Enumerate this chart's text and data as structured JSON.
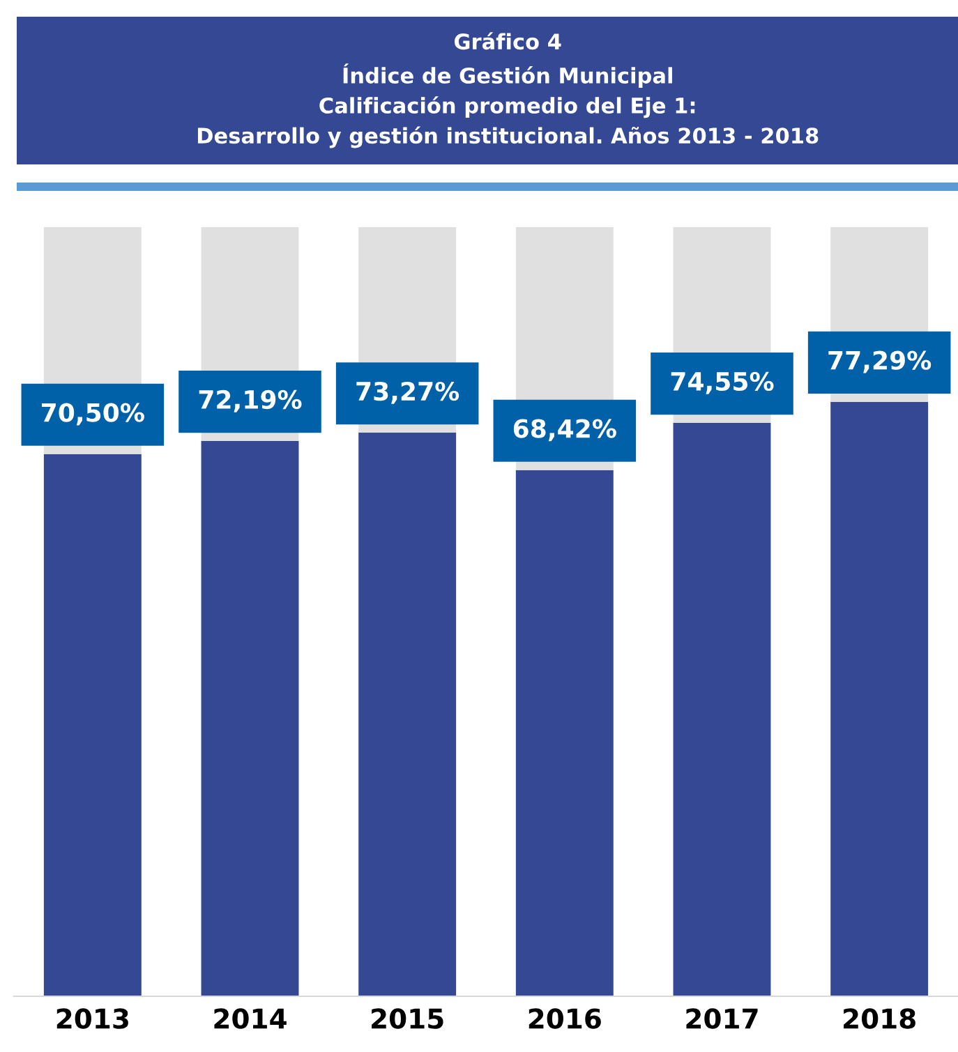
{
  "chart_data": {
    "type": "bar",
    "title": "Gráfico 4\nÍndice de Gestión Municipal\nCalificación promedio del Eje 1:\nDesarrollo y gestión institucional. Años 2013 - 2018",
    "categories": [
      "2013",
      "2014",
      "2015",
      "2016",
      "2017",
      "2018"
    ],
    "stacked": true,
    "series": [
      {
        "color": "#344893",
        "values": [
          70.5,
          72.19,
          73.27,
          68.42,
          74.55,
          77.29
        ],
        "value_labels": [
          "70,50%",
          "72,19%",
          "73,27%",
          "68,42%",
          "74,55%",
          "77,29%"
        ]
      },
      {
        "color": "#e0e0e0",
        "values": [
          29.5,
          27.81,
          26.73,
          31.58,
          25.45,
          22.71
        ]
      }
    ],
    "tick_labels": "x",
    "grid": false,
    "legend": false
  }
}
